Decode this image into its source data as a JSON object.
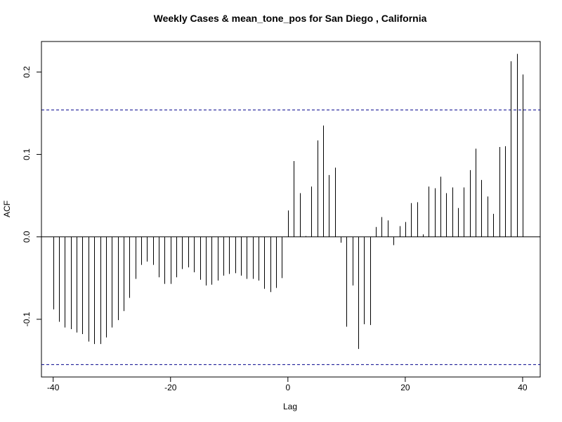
{
  "chart_data": {
    "type": "bar",
    "title": "Weekly Cases & mean_tone_pos for San Diego , California",
    "xlabel": "Lag",
    "ylabel": "ACF",
    "xlim": [
      -42,
      43
    ],
    "ylim": [
      -0.17,
      0.237
    ],
    "x_ticks": [
      -40,
      -20,
      0,
      20,
      40
    ],
    "x_tick_labels": [
      "-40",
      "-20",
      "0",
      "20",
      "40"
    ],
    "y_ticks": [
      -0.1,
      0.0,
      0.1,
      0.2
    ],
    "y_tick_labels": [
      "-0.1",
      "0.0",
      "0.1",
      "0.2"
    ],
    "confidence_bounds": [
      0.154,
      -0.155
    ],
    "bound_color": "#00008b",
    "bar_color": "#000000",
    "zero_line": true,
    "x": [
      -40,
      -39,
      -38,
      -37,
      -36,
      -35,
      -34,
      -33,
      -32,
      -31,
      -30,
      -29,
      -28,
      -27,
      -26,
      -25,
      -24,
      -23,
      -22,
      -21,
      -20,
      -19,
      -18,
      -17,
      -16,
      -15,
      -14,
      -13,
      -12,
      -11,
      -10,
      -9,
      -8,
      -7,
      -6,
      -5,
      -4,
      -3,
      -2,
      -1,
      0,
      1,
      2,
      3,
      4,
      5,
      6,
      7,
      8,
      9,
      10,
      11,
      12,
      13,
      14,
      15,
      16,
      17,
      18,
      19,
      20,
      21,
      22,
      23,
      24,
      25,
      26,
      27,
      28,
      29,
      30,
      31,
      32,
      33,
      34,
      35,
      36,
      37,
      38,
      39,
      40
    ],
    "values": [
      -0.088,
      -0.103,
      -0.11,
      -0.112,
      -0.116,
      -0.118,
      -0.127,
      -0.13,
      -0.13,
      -0.122,
      -0.11,
      -0.101,
      -0.09,
      -0.074,
      -0.051,
      -0.034,
      -0.03,
      -0.034,
      -0.049,
      -0.057,
      -0.057,
      -0.049,
      -0.039,
      -0.037,
      -0.043,
      -0.052,
      -0.059,
      -0.058,
      -0.053,
      -0.047,
      -0.045,
      -0.044,
      -0.047,
      -0.051,
      -0.051,
      -0.053,
      -0.063,
      -0.067,
      -0.062,
      -0.05,
      0.032,
      0.092,
      0.053,
      0.001,
      0.061,
      0.117,
      0.135,
      0.075,
      0.084,
      -0.007,
      -0.109,
      -0.059,
      -0.136,
      -0.106,
      -0.107,
      0.012,
      0.024,
      0.02,
      -0.01,
      0.013,
      0.018,
      0.041,
      0.042,
      0.003,
      0.061,
      0.059,
      0.073,
      0.053,
      0.06,
      0.035,
      0.06,
      0.081,
      0.107,
      0.069,
      0.049,
      0.028,
      0.109,
      0.11,
      0.213,
      0.222,
      0.197
    ]
  }
}
